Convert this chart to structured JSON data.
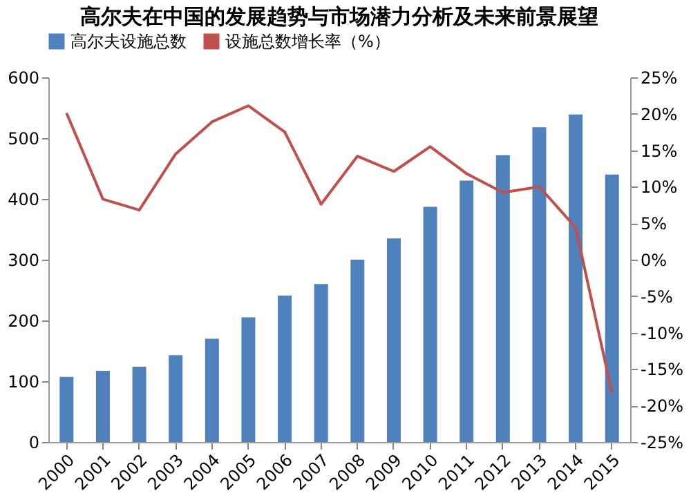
{
  "chart_data": {
    "type": "bar",
    "title": "高尔夫在中国的发展趋势与市场潜力分析及未来前景展望",
    "categories": [
      "2000",
      "2001",
      "2002",
      "2003",
      "2004",
      "2005",
      "2006",
      "2007",
      "2008",
      "2009",
      "2010",
      "2011",
      "2012",
      "2013",
      "2014",
      "2015"
    ],
    "series": [
      {
        "name": "高尔夫设施总数",
        "color": "#4f81bd",
        "values": [
          107,
          117,
          124,
          143,
          170,
          205,
          241,
          260,
          300,
          335,
          387,
          430,
          472,
          518,
          539,
          440
        ]
      },
      {
        "name": "设施总数增长率（%）",
        "color": "#c0504d",
        "type": "line",
        "axis": "y2",
        "values": [
          20.1,
          8.3,
          6.8,
          14.5,
          18.9,
          21.1,
          17.5,
          7.6,
          14.2,
          12.1,
          15.5,
          11.8,
          9.2,
          10.0,
          4.4,
          -18.3
        ]
      }
    ],
    "ylim": [
      0,
      600
    ],
    "yticks": [
      0,
      100,
      200,
      300,
      400,
      500,
      600
    ],
    "y2lim": [
      -25,
      25
    ],
    "y2ticks": [
      {
        "value": -25,
        "label": "-25%"
      },
      {
        "value": -20,
        "label": "-20%"
      },
      {
        "value": -15,
        "label": "-15%"
      },
      {
        "value": -10,
        "label": "-10%"
      },
      {
        "value": -5,
        "label": "-5%"
      },
      {
        "value": 0,
        "label": "0%"
      },
      {
        "value": 5,
        "label": "5%"
      },
      {
        "value": 10,
        "label": "10%"
      },
      {
        "value": 15,
        "label": "15%"
      },
      {
        "value": 20,
        "label": "20%"
      },
      {
        "value": 25,
        "label": "25%"
      }
    ],
    "legend": "top",
    "grid": false
  }
}
